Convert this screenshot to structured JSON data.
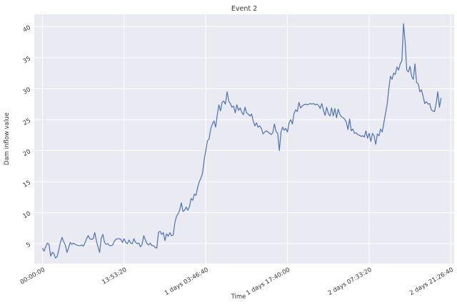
{
  "chart_data": {
    "type": "line",
    "title": "Event 2",
    "xlabel": "Time",
    "ylabel": "Dam inflow value",
    "x_unit": "seconds",
    "xlim": [
      -5000,
      252000
    ],
    "ylim": [
      1.8,
      42.0
    ],
    "x_ticks": [
      {
        "value": 0,
        "label": "00:00:00"
      },
      {
        "value": 50000,
        "label": "13:53:20"
      },
      {
        "value": 100000,
        "label": "1 days 03:46:40"
      },
      {
        "value": 150000,
        "label": "1 days 17:40:00"
      },
      {
        "value": 200000,
        "label": "2 days 07:33:20"
      },
      {
        "value": 250000,
        "label": "2 days 21:26:40"
      }
    ],
    "y_ticks": [
      5,
      10,
      15,
      20,
      25,
      30,
      35,
      40
    ],
    "grid": true,
    "colors": {
      "background": "#eaeaf2",
      "grid": "#ffffff",
      "line": "#4c72b0"
    },
    "series": [
      {
        "points": [
          [
            0,
            4.3
          ],
          [
            1000,
            3.8
          ],
          [
            2000,
            4.5
          ],
          [
            3000,
            5.1
          ],
          [
            4000,
            4.9
          ],
          [
            5000,
            3.0
          ],
          [
            6000,
            3.6
          ],
          [
            7000,
            3.4
          ],
          [
            8000,
            2.7
          ],
          [
            9000,
            2.9
          ],
          [
            10000,
            4.0
          ],
          [
            11000,
            5.2
          ],
          [
            12000,
            6.0
          ],
          [
            13000,
            5.3
          ],
          [
            14000,
            4.8
          ],
          [
            15000,
            3.6
          ],
          [
            16000,
            4.3
          ],
          [
            17000,
            5.2
          ],
          [
            18000,
            4.9
          ],
          [
            19000,
            5.1
          ],
          [
            20000,
            4.9
          ],
          [
            21000,
            4.8
          ],
          [
            22000,
            4.7
          ],
          [
            23000,
            4.7
          ],
          [
            24000,
            4.8
          ],
          [
            25000,
            4.6
          ],
          [
            26000,
            5.1
          ],
          [
            27000,
            5.8
          ],
          [
            28000,
            6.3
          ],
          [
            29000,
            5.8
          ],
          [
            30000,
            5.7
          ],
          [
            31000,
            5.8
          ],
          [
            32000,
            6.8
          ],
          [
            33000,
            5.5
          ],
          [
            34000,
            4.5
          ],
          [
            35000,
            3.6
          ],
          [
            36000,
            5.9
          ],
          [
            37000,
            6.5
          ],
          [
            38000,
            5.2
          ],
          [
            39000,
            4.9
          ],
          [
            40000,
            5.0
          ],
          [
            41000,
            4.7
          ],
          [
            42000,
            4.7
          ],
          [
            43000,
            4.8
          ],
          [
            44000,
            5.4
          ],
          [
            45000,
            5.7
          ],
          [
            46000,
            5.8
          ],
          [
            47000,
            5.8
          ],
          [
            48000,
            5.7
          ],
          [
            49000,
            5.2
          ],
          [
            50000,
            5.8
          ],
          [
            51000,
            5.2
          ],
          [
            52000,
            5.0
          ],
          [
            53000,
            5.6
          ],
          [
            54000,
            5.1
          ],
          [
            55000,
            5.0
          ],
          [
            56000,
            5.8
          ],
          [
            57000,
            5.2
          ],
          [
            58000,
            5.0
          ],
          [
            59000,
            5.1
          ],
          [
            60000,
            4.5
          ],
          [
            61000,
            4.9
          ],
          [
            62000,
            6.3
          ],
          [
            63000,
            5.6
          ],
          [
            64000,
            5.0
          ],
          [
            65000,
            4.8
          ],
          [
            66000,
            5.1
          ],
          [
            67000,
            4.7
          ],
          [
            68000,
            4.7
          ],
          [
            69000,
            4.4
          ],
          [
            70000,
            4.3
          ],
          [
            71000,
            6.8
          ],
          [
            72000,
            7.0
          ],
          [
            73000,
            6.5
          ],
          [
            74000,
            6.8
          ],
          [
            75000,
            5.5
          ],
          [
            76000,
            6.6
          ],
          [
            77000,
            6.2
          ],
          [
            78000,
            6.8
          ],
          [
            79000,
            6.3
          ],
          [
            80000,
            6.4
          ],
          [
            81000,
            8.3
          ],
          [
            82000,
            9.4
          ],
          [
            83000,
            9.8
          ],
          [
            84000,
            10.4
          ],
          [
            85000,
            11.6
          ],
          [
            86000,
            10.2
          ],
          [
            87000,
            10.4
          ],
          [
            88000,
            10.9
          ],
          [
            89000,
            10.4
          ],
          [
            90000,
            11.0
          ],
          [
            91000,
            12.3
          ],
          [
            92000,
            12.0
          ],
          [
            93000,
            13.0
          ],
          [
            94000,
            12.8
          ],
          [
            95000,
            14.1
          ],
          [
            96000,
            15.0
          ],
          [
            97000,
            15.6
          ],
          [
            98000,
            16.4
          ],
          [
            99000,
            18.5
          ],
          [
            100000,
            20.0
          ],
          [
            101000,
            21.6
          ],
          [
            102000,
            21.9
          ],
          [
            103000,
            23.5
          ],
          [
            104000,
            24.3
          ],
          [
            105000,
            24.8
          ],
          [
            106000,
            23.8
          ],
          [
            107000,
            25.7
          ],
          [
            108000,
            27.4
          ],
          [
            109000,
            26.4
          ],
          [
            110000,
            27.8
          ],
          [
            111000,
            28.0
          ],
          [
            112000,
            27.5
          ],
          [
            113000,
            29.5
          ],
          [
            114000,
            28.0
          ],
          [
            115000,
            27.6
          ],
          [
            116000,
            27.0
          ],
          [
            117000,
            27.2
          ],
          [
            118000,
            26.1
          ],
          [
            119000,
            27.4
          ],
          [
            120000,
            26.5
          ],
          [
            121000,
            26.9
          ],
          [
            122000,
            26.2
          ],
          [
            123000,
            25.8
          ],
          [
            124000,
            27.0
          ],
          [
            125000,
            26.1
          ],
          [
            126000,
            25.9
          ],
          [
            127000,
            25.6
          ],
          [
            128000,
            25.9
          ],
          [
            129000,
            24.8
          ],
          [
            130000,
            24.0
          ],
          [
            131000,
            24.5
          ],
          [
            132000,
            23.8
          ],
          [
            133000,
            24.0
          ],
          [
            134000,
            23.6
          ],
          [
            135000,
            22.7
          ],
          [
            136000,
            23.0
          ],
          [
            137000,
            23.2
          ],
          [
            138000,
            23.0
          ],
          [
            139000,
            22.8
          ],
          [
            140000,
            22.6
          ],
          [
            141000,
            22.9
          ],
          [
            142000,
            24.3
          ],
          [
            143000,
            23.1
          ],
          [
            144000,
            22.8
          ],
          [
            145000,
            20.0
          ],
          [
            146000,
            23.0
          ],
          [
            147000,
            23.8
          ],
          [
            148000,
            23.3
          ],
          [
            149000,
            23.6
          ],
          [
            150000,
            23.0
          ],
          [
            151000,
            24.5
          ],
          [
            152000,
            25.0
          ],
          [
            153000,
            24.3
          ],
          [
            154000,
            26.0
          ],
          [
            155000,
            26.6
          ],
          [
            156000,
            26.3
          ],
          [
            157000,
            27.8
          ],
          [
            158000,
            26.9
          ],
          [
            159000,
            27.2
          ],
          [
            160000,
            27.4
          ],
          [
            161000,
            27.5
          ],
          [
            162000,
            27.4
          ],
          [
            163000,
            27.5
          ],
          [
            164000,
            27.6
          ],
          [
            165000,
            27.5
          ],
          [
            166000,
            27.6
          ],
          [
            167000,
            27.4
          ],
          [
            168000,
            27.5
          ],
          [
            169000,
            27.3
          ],
          [
            170000,
            26.8
          ],
          [
            171000,
            27.6
          ],
          [
            172000,
            26.5
          ],
          [
            173000,
            25.7
          ],
          [
            174000,
            27.0
          ],
          [
            175000,
            26.0
          ],
          [
            176000,
            25.6
          ],
          [
            177000,
            26.9
          ],
          [
            178000,
            25.6
          ],
          [
            179000,
            26.8
          ],
          [
            180000,
            25.3
          ],
          [
            181000,
            26.7
          ],
          [
            182000,
            25.9
          ],
          [
            183000,
            25.5
          ],
          [
            184000,
            25.3
          ],
          [
            185000,
            25.1
          ],
          [
            186000,
            24.6
          ],
          [
            187000,
            23.4
          ],
          [
            188000,
            25.1
          ],
          [
            189000,
            23.2
          ],
          [
            190000,
            23.5
          ],
          [
            191000,
            22.8
          ],
          [
            192000,
            22.9
          ],
          [
            193000,
            22.6
          ],
          [
            194000,
            22.5
          ],
          [
            195000,
            22.3
          ],
          [
            196000,
            22.4
          ],
          [
            197000,
            22.2
          ],
          [
            198000,
            23.2
          ],
          [
            199000,
            22.0
          ],
          [
            200000,
            22.8
          ],
          [
            201000,
            21.5
          ],
          [
            202000,
            22.8
          ],
          [
            203000,
            22.4
          ],
          [
            204000,
            21.0
          ],
          [
            205000,
            22.7
          ],
          [
            206000,
            22.4
          ],
          [
            207000,
            23.5
          ],
          [
            208000,
            23.0
          ],
          [
            209000,
            24.5
          ],
          [
            210000,
            26.0
          ],
          [
            211000,
            27.5
          ],
          [
            212000,
            30.0
          ],
          [
            213000,
            32.0
          ],
          [
            214000,
            31.5
          ],
          [
            215000,
            32.5
          ],
          [
            216000,
            32.3
          ],
          [
            217000,
            33.5
          ],
          [
            218000,
            33.0
          ],
          [
            219000,
            34.0
          ],
          [
            220000,
            34.5
          ],
          [
            221000,
            40.5
          ],
          [
            222000,
            37.5
          ],
          [
            223000,
            33.0
          ],
          [
            224000,
            32.7
          ],
          [
            225000,
            33.6
          ],
          [
            226000,
            32.0
          ],
          [
            227000,
            31.5
          ],
          [
            228000,
            34.0
          ],
          [
            229000,
            31.0
          ],
          [
            230000,
            30.8
          ],
          [
            231000,
            29.5
          ],
          [
            232000,
            29.8
          ],
          [
            233000,
            28.8
          ],
          [
            234000,
            27.6
          ],
          [
            235000,
            27.9
          ],
          [
            236000,
            27.5
          ],
          [
            237000,
            27.6
          ],
          [
            238000,
            26.6
          ],
          [
            239000,
            26.4
          ],
          [
            240000,
            26.3
          ],
          [
            241000,
            27.6
          ],
          [
            242000,
            29.5
          ],
          [
            243000,
            27.0
          ],
          [
            244000,
            28.5
          ]
        ]
      }
    ]
  }
}
